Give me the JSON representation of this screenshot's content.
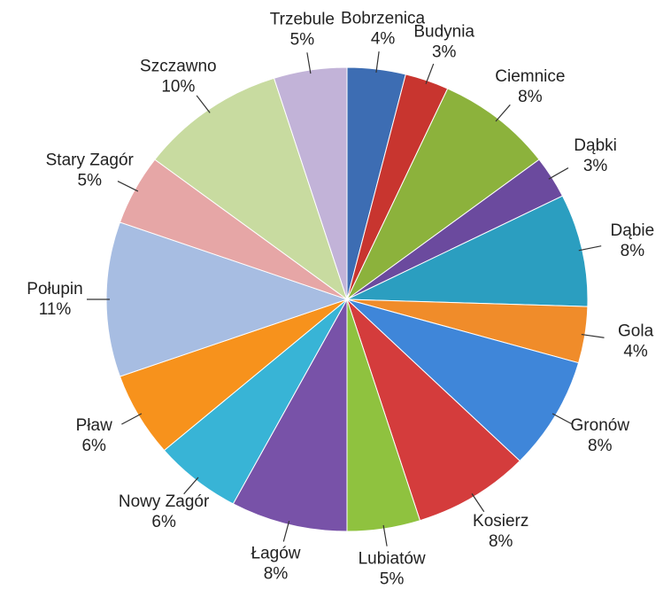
{
  "chart_data": {
    "type": "pie",
    "categories": [
      "Bobrzenica",
      "Budynia",
      "Ciemnice",
      "Dąbki",
      "Dąbie",
      "Gola",
      "Gronów",
      "Kosierz",
      "Lubiatów",
      "Łagów",
      "Nowy Zagór",
      "Pław",
      "Połupin",
      "Stary Zagór",
      "Szczawno",
      "Trzebule"
    ],
    "values": [
      4,
      3,
      8,
      3,
      8,
      4,
      8,
      8,
      5,
      8,
      6,
      6,
      11,
      5,
      10,
      5
    ],
    "value_labels": [
      "4%",
      "3%",
      "8%",
      "3%",
      "8%",
      "4%",
      "8%",
      "8%",
      "5%",
      "8%",
      "6%",
      "6%",
      "11%",
      "5%",
      "10%",
      "5%"
    ],
    "colors": [
      "#3d6db3",
      "#c8352f",
      "#8cb23c",
      "#6b4a9e",
      "#2b9ec0",
      "#f08c2a",
      "#3f86d9",
      "#d43c3c",
      "#8fc23f",
      "#7852a8",
      "#38b4d6",
      "#f7921c",
      "#a7bde2",
      "#e6a6a6",
      "#c8dba0",
      "#c2b3d8"
    ]
  }
}
